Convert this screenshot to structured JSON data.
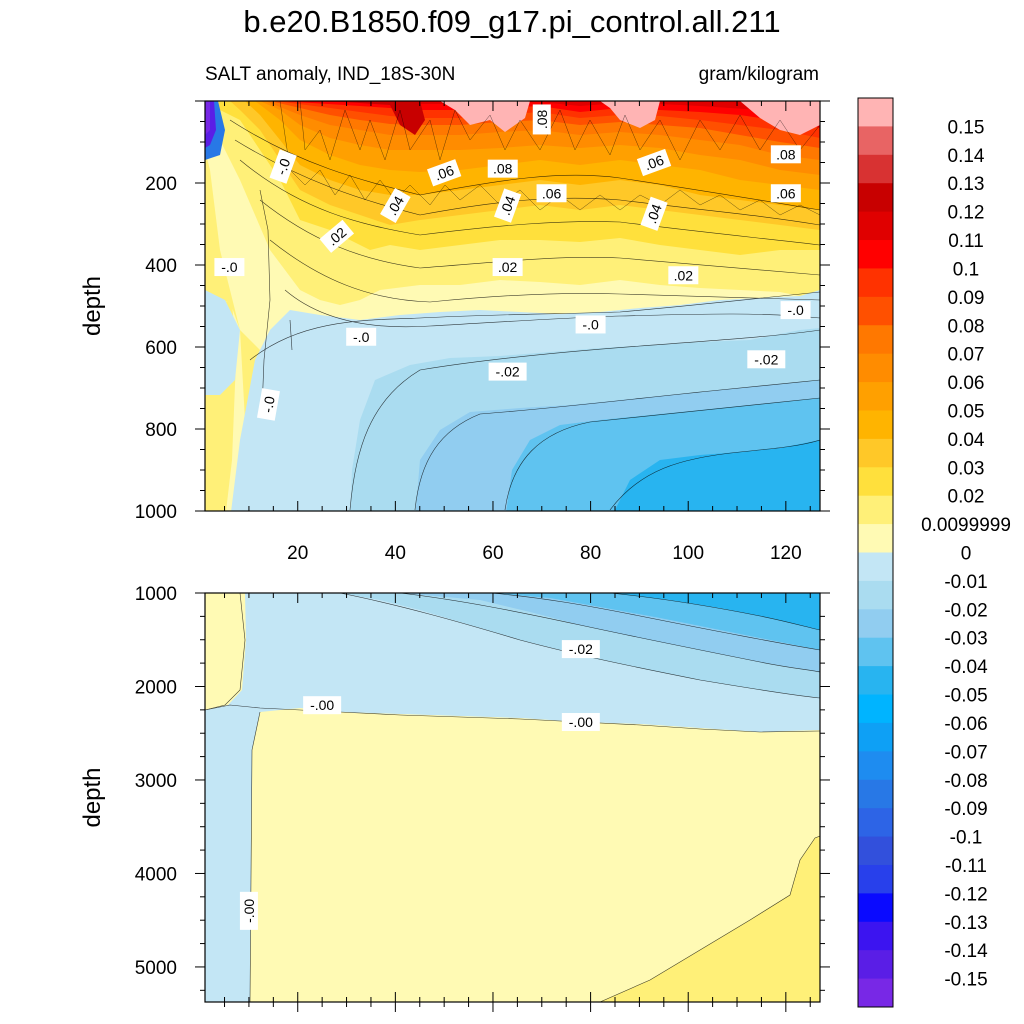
{
  "title": "b.e20.B1850.f09_g17.pi_control.all.211",
  "subtitle_left": "SALT anomaly, IND_18S-30N",
  "subtitle_right": "gram/kilogram",
  "colorbar": {
    "labels": [
      "0.15",
      "0.14",
      "0.13",
      "0.12",
      "0.11",
      "0.1",
      "0.09",
      "0.08",
      "0.07",
      "0.06",
      "0.05",
      "0.04",
      "0.03",
      "0.02",
      "0.0099999",
      "0",
      "-0.01",
      "-0.02",
      "-0.03",
      "-0.04",
      "-0.05",
      "-0.06",
      "-0.07",
      "-0.08",
      "-0.09",
      "-0.1",
      "-0.11",
      "-0.12",
      "-0.13",
      "-0.14",
      "-0.15"
    ],
    "colors": [
      "#ffb4b4",
      "#e86464",
      "#d83232",
      "#c80000",
      "#e00000",
      "#ff0000",
      "#ff3200",
      "#ff5000",
      "#ff7800",
      "#ff8c00",
      "#ffa000",
      "#ffb400",
      "#ffc828",
      "#ffe03c",
      "#fff078",
      "#fffab4",
      "#c3e6f5",
      "#aadcf0",
      "#91cdf0",
      "#5fc3f0",
      "#28b4f0",
      "#00b4ff",
      "#0ea0f5",
      "#1e8cf0",
      "#2878e6",
      "#2d64e6",
      "#3250dc",
      "#2840eb",
      "#0a0aff",
      "#3c14f0",
      "#5a1ee6",
      "#7828e6"
    ]
  },
  "chart_data": [
    {
      "type": "contour",
      "panel": "upper",
      "xlabel": "",
      "ylabel": "depth",
      "x_ticks": [
        "20",
        "40",
        "60",
        "80",
        "100",
        "120"
      ],
      "x_tick_values": [
        20,
        40,
        60,
        80,
        100,
        120
      ],
      "xlim": [
        1,
        127
      ],
      "y_ticks": [
        "200",
        "400",
        "600",
        "800",
        "1000"
      ],
      "y_tick_values": [
        200,
        400,
        600,
        800,
        1000
      ],
      "ylim": [
        1000,
        0
      ],
      "contour_labels": [
        {
          "text": "-.0",
          "x": 17,
          "y": 160,
          "rot": -70
        },
        {
          "text": "-.0",
          "x": 6,
          "y": 405,
          "rot": 0
        },
        {
          "text": ".02",
          "x": 28,
          "y": 330,
          "rot": -40
        },
        {
          "text": ".04",
          "x": 40,
          "y": 255,
          "rot": -60
        },
        {
          "text": ".06",
          "x": 50,
          "y": 175,
          "rot": -20
        },
        {
          "text": ".08",
          "x": 62,
          "y": 165,
          "rot": 0
        },
        {
          "text": ".04",
          "x": 63,
          "y": 255,
          "rot": -70
        },
        {
          "text": ".06",
          "x": 72,
          "y": 225,
          "rot": 0
        },
        {
          "text": ".08",
          "x": 70,
          "y": 45,
          "rot": -90
        },
        {
          "text": ".02",
          "x": 63,
          "y": 405,
          "rot": 0
        },
        {
          "text": ".06",
          "x": 93,
          "y": 150,
          "rot": -20
        },
        {
          "text": ".04",
          "x": 93,
          "y": 275,
          "rot": -70
        },
        {
          "text": ".08",
          "x": 120,
          "y": 130,
          "rot": 0
        },
        {
          "text": ".06",
          "x": 120,
          "y": 225,
          "rot": 0
        },
        {
          "text": ".02",
          "x": 99,
          "y": 425,
          "rot": 0
        },
        {
          "text": "-.0",
          "x": 80,
          "y": 545,
          "rot": 0
        },
        {
          "text": "-.0",
          "x": 33,
          "y": 575,
          "rot": 0
        },
        {
          "text": "-.0",
          "x": 122,
          "y": 510,
          "rot": 0
        },
        {
          "text": "-.02",
          "x": 63,
          "y": 660,
          "rot": 0
        },
        {
          "text": "-.02",
          "x": 116,
          "y": 630,
          "rot": 0
        },
        {
          "text": "-.0",
          "x": 14,
          "y": 740,
          "rot": -80
        }
      ]
    },
    {
      "type": "contour",
      "panel": "lower",
      "xlabel": "",
      "ylabel": "depth",
      "xlim": [
        1,
        127
      ],
      "y_ticks": [
        "1000",
        "2000",
        "3000",
        "4000",
        "5000"
      ],
      "y_tick_values": [
        1000,
        2000,
        3000,
        4000,
        5000
      ],
      "ylim": [
        5375,
        1000
      ],
      "contour_labels": [
        {
          "text": "-.02",
          "x": 78,
          "y": 1600,
          "rot": 0
        },
        {
          "text": "-.00",
          "x": 25,
          "y": 2200,
          "rot": 0
        },
        {
          "text": "-.00",
          "x": 78,
          "y": 2380,
          "rot": 0
        },
        {
          "text": "-.00",
          "x": 10,
          "y": 4400,
          "rot": -90
        }
      ]
    }
  ]
}
